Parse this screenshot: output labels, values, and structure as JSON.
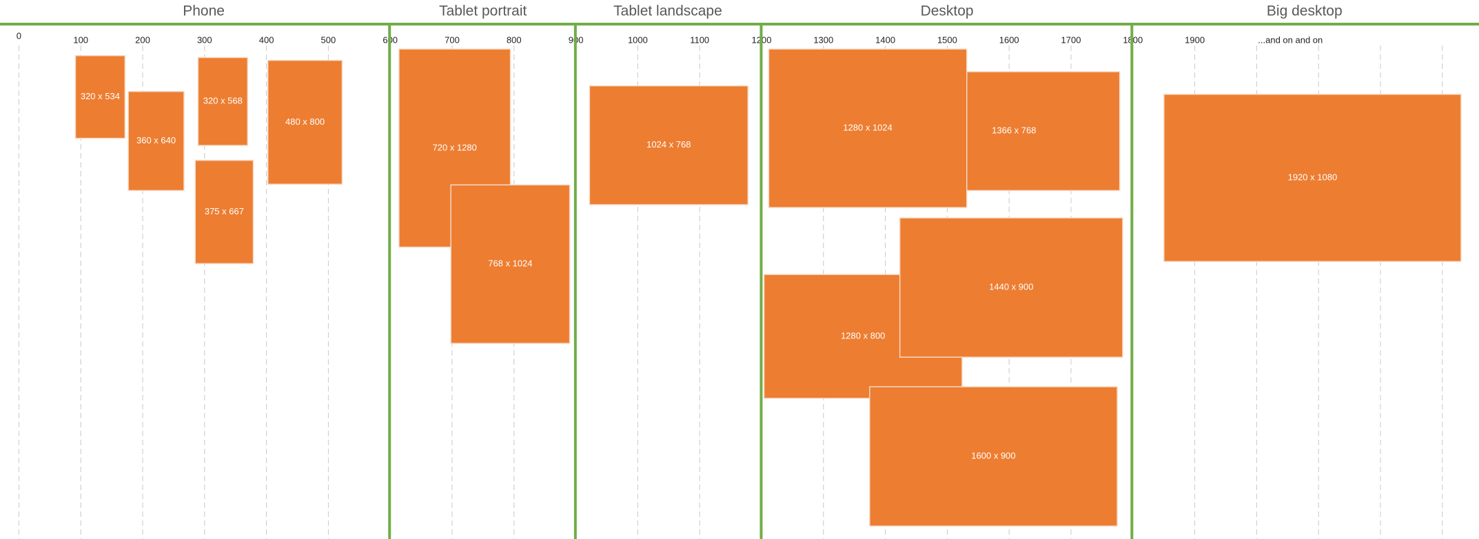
{
  "sections": [
    {
      "title": "Phone"
    },
    {
      "title": "Tablet portrait"
    },
    {
      "title": "Tablet landscape"
    },
    {
      "title": "Desktop"
    },
    {
      "title": "Big desktop"
    }
  ],
  "ruler": {
    "ticks": [
      "0",
      "100",
      "200",
      "300",
      "400",
      "500",
      "600",
      "700",
      "800",
      "900",
      "1000",
      "1100",
      "1200",
      "1300",
      "1400",
      "1500",
      "1600",
      "1700",
      "1800",
      "1900"
    ],
    "note": "...and on and on"
  },
  "devices": [
    {
      "label": "320 x 534"
    },
    {
      "label": "360 x 640"
    },
    {
      "label": "320 x 568"
    },
    {
      "label": "375 x 667"
    },
    {
      "label": "480 x 800"
    },
    {
      "label": "720 x 1280"
    },
    {
      "label": "768 x 1024"
    },
    {
      "label": "1024 x 768"
    },
    {
      "label": "1366 x 768"
    },
    {
      "label": "1280 x 1024"
    },
    {
      "label": "1280 x 800"
    },
    {
      "label": "1440 x 900"
    },
    {
      "label": "1600 x 900"
    },
    {
      "label": "1920 x 1080"
    }
  ]
}
